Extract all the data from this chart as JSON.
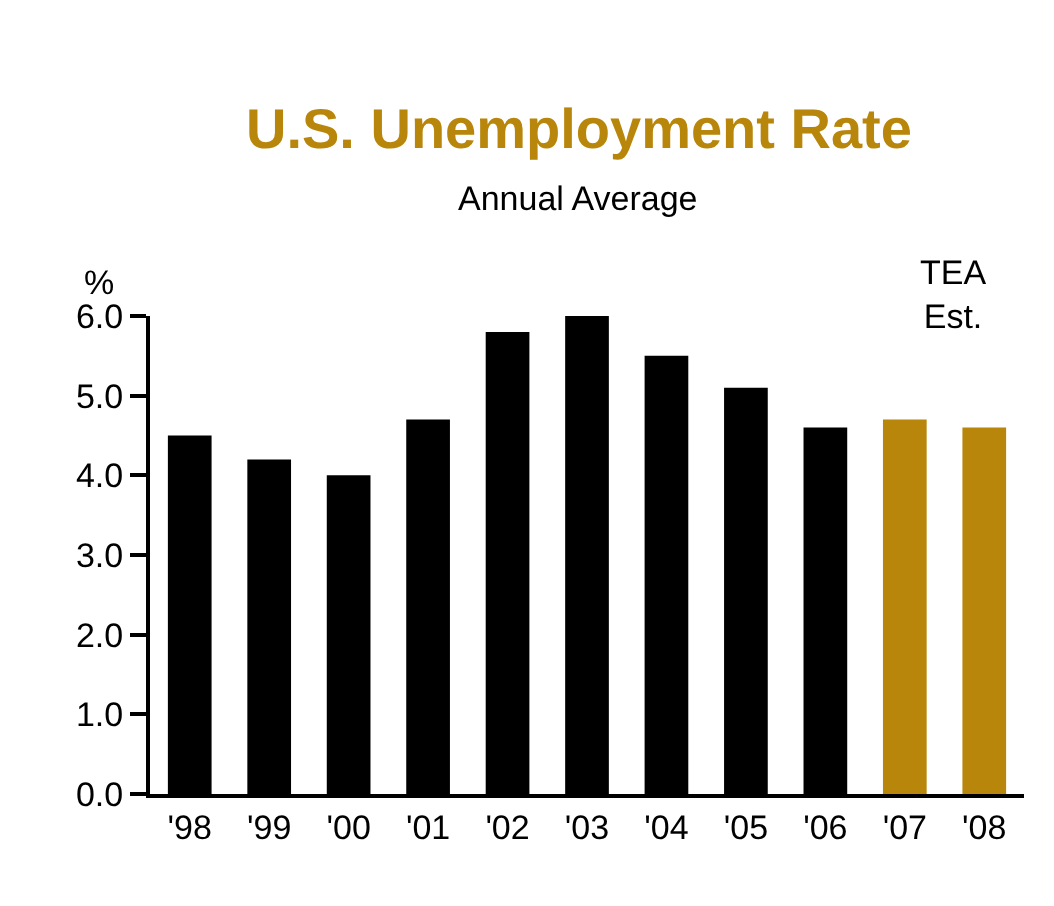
{
  "chart_data": {
    "type": "bar",
    "title": "U.S. Unemployment Rate",
    "subtitle": "Annual Average",
    "ylabel": "%",
    "categories": [
      "'98",
      "'99",
      "'00",
      "'01",
      "'02",
      "'03",
      "'04",
      "'05",
      "'06",
      "'07",
      "'08"
    ],
    "values": [
      4.5,
      4.2,
      4.0,
      4.7,
      5.8,
      6.0,
      5.5,
      5.1,
      4.6,
      4.7,
      4.6
    ],
    "colors": [
      "#000000",
      "#000000",
      "#000000",
      "#000000",
      "#000000",
      "#000000",
      "#000000",
      "#000000",
      "#000000",
      "#b8860b",
      "#b8860b"
    ],
    "ylim": [
      0,
      6
    ],
    "yticks": [
      {
        "value": 0,
        "label": "0.0"
      },
      {
        "value": 1,
        "label": "1.0"
      },
      {
        "value": 2,
        "label": "2.0"
      },
      {
        "value": 3,
        "label": "3.0"
      },
      {
        "value": 4,
        "label": "4.0"
      },
      {
        "value": 5,
        "label": "5.0"
      },
      {
        "value": 6,
        "label": "6.0"
      }
    ],
    "annotations": [
      "TEA\nEst."
    ],
    "legend": false
  }
}
